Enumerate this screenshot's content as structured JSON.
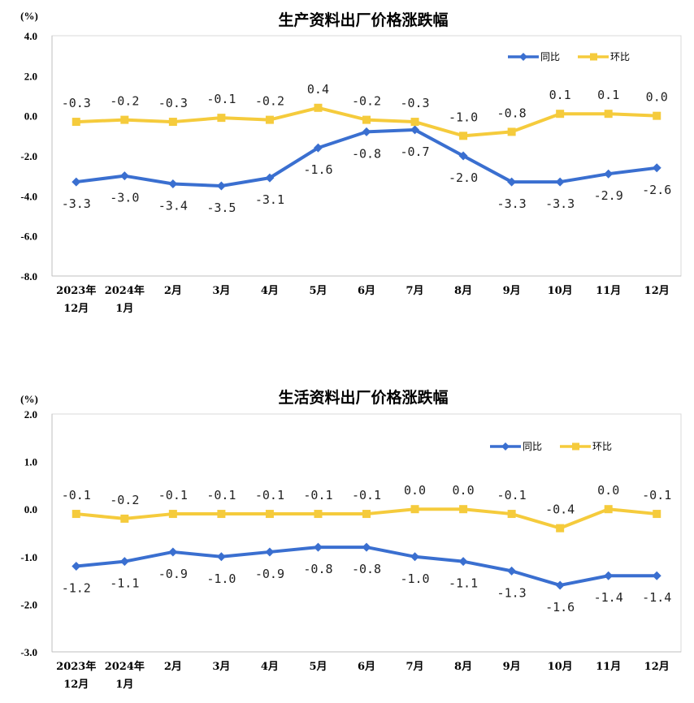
{
  "colors": {
    "yoy": "#3a6fd0",
    "mom": "#f5cb3c"
  },
  "chart_data": [
    {
      "type": "line",
      "title": "生产资料出厂价格涨跌幅",
      "ylabel": "(%)",
      "categories": [
        [
          "2023年",
          "12月"
        ],
        [
          "2024年",
          "1月"
        ],
        [
          "2月"
        ],
        [
          "3月"
        ],
        [
          "4月"
        ],
        [
          "5月"
        ],
        [
          "6月"
        ],
        [
          "7月"
        ],
        [
          "8月"
        ],
        [
          "9月"
        ],
        [
          "10月"
        ],
        [
          "11月"
        ],
        [
          "12月"
        ]
      ],
      "ylim": [
        -8.0,
        4.0
      ],
      "yticks": [
        "4.0",
        "2.0",
        "0.0",
        "-2.0",
        "-4.0",
        "-6.0",
        "-8.0"
      ],
      "ytick_values": [
        4,
        2,
        0,
        -2,
        -4,
        -6,
        -8
      ],
      "legend_position": "top-right",
      "series": [
        {
          "name": "同比",
          "color": "#3a6fd0",
          "marker": "diamond",
          "values": [
            -3.3,
            -3.0,
            -3.4,
            -3.5,
            -3.1,
            -1.6,
            -0.8,
            -0.7,
            -2.0,
            -3.3,
            -3.3,
            -2.9,
            -2.6
          ],
          "labels": [
            "-3.3",
            "-3.0",
            "-3.4",
            "-3.5",
            "-3.1",
            "-1.6",
            "-0.8",
            "-0.7",
            "-2.0",
            "-3.3",
            "-3.3",
            "-2.9",
            "-2.6"
          ]
        },
        {
          "name": "环比",
          "color": "#f5cb3c",
          "marker": "square",
          "values": [
            -0.3,
            -0.2,
            -0.3,
            -0.1,
            -0.2,
            0.4,
            -0.2,
            -0.3,
            -1.0,
            -0.8,
            0.1,
            0.1,
            0.0
          ],
          "labels": [
            "-0.3",
            "-0.2",
            "-0.3",
            "-0.1",
            "-0.2",
            "0.4",
            "-0.2",
            "-0.3",
            "-1.0",
            "-0.8",
            "0.1",
            "0.1",
            "0.0"
          ]
        }
      ]
    },
    {
      "type": "line",
      "title": "生活资料出厂价格涨跌幅",
      "ylabel": "(%)",
      "categories": [
        [
          "2023年",
          "12月"
        ],
        [
          "2024年",
          "1月"
        ],
        [
          "2月"
        ],
        [
          "3月"
        ],
        [
          "4月"
        ],
        [
          "5月"
        ],
        [
          "6月"
        ],
        [
          "7月"
        ],
        [
          "8月"
        ],
        [
          "9月"
        ],
        [
          "10月"
        ],
        [
          "11月"
        ],
        [
          "12月"
        ]
      ],
      "ylim": [
        -3.0,
        2.0
      ],
      "yticks": [
        "2.0",
        "1.0",
        "0.0",
        "-1.0",
        "-2.0",
        "-3.0"
      ],
      "ytick_values": [
        2,
        1,
        0,
        -1,
        -2,
        -3
      ],
      "legend_position": "top-right",
      "series": [
        {
          "name": "同比",
          "color": "#3a6fd0",
          "marker": "diamond",
          "values": [
            -1.2,
            -1.1,
            -0.9,
            -1.0,
            -0.9,
            -0.8,
            -0.8,
            -1.0,
            -1.1,
            -1.3,
            -1.6,
            -1.4,
            -1.4
          ],
          "labels": [
            "-1.2",
            "-1.1",
            "-0.9",
            "-1.0",
            "-0.9",
            "-0.8",
            "-0.8",
            "-1.0",
            "-1.1",
            "-1.3",
            "-1.6",
            "-1.4",
            "-1.4"
          ]
        },
        {
          "name": "环比",
          "color": "#f5cb3c",
          "marker": "square",
          "values": [
            -0.1,
            -0.2,
            -0.1,
            -0.1,
            -0.1,
            -0.1,
            -0.1,
            0.0,
            0.0,
            -0.1,
            -0.4,
            0.0,
            -0.1
          ],
          "labels": [
            "-0.1",
            "-0.2",
            "-0.1",
            "-0.1",
            "-0.1",
            "-0.1",
            "-0.1",
            "0.0",
            "0.0",
            "-0.1",
            "-0.4",
            "0.0",
            "-0.1"
          ]
        }
      ]
    }
  ]
}
